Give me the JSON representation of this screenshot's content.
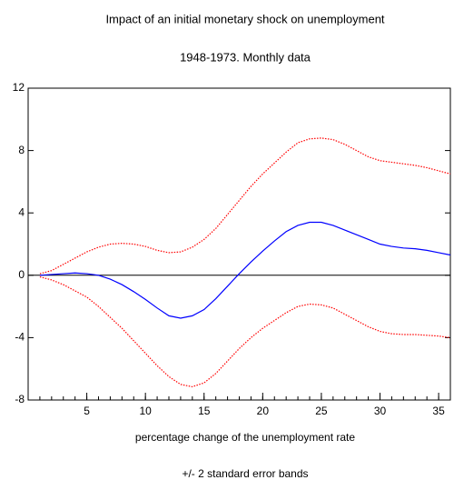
{
  "chart_data": {
    "type": "line",
    "title": "Impact of an initial monetary shock on unemployment",
    "subtitle": "1948-1973. Monthly data",
    "x_label": "percentage change of the unemployment rate",
    "note": "+/- 2 standard error bands",
    "x": [
      1,
      2,
      3,
      4,
      5,
      6,
      7,
      8,
      9,
      10,
      11,
      12,
      13,
      14,
      15,
      16,
      17,
      18,
      19,
      20,
      21,
      22,
      23,
      24,
      25,
      26,
      27,
      28,
      29,
      30,
      31,
      32,
      33,
      34,
      35,
      36
    ],
    "series": [
      {
        "color": "#0000ff",
        "dashed": false,
        "values": [
          0,
          0.05,
          0.1,
          0.15,
          0.1,
          0,
          -0.25,
          -0.6,
          -1.05,
          -1.55,
          -2.1,
          -2.6,
          -2.75,
          -2.6,
          -2.2,
          -1.5,
          -0.7,
          0.1,
          0.85,
          1.55,
          2.2,
          2.8,
          3.2,
          3.4,
          3.4,
          3.2,
          2.9,
          2.6,
          2.3,
          2.0,
          1.85,
          1.75,
          1.7,
          1.6,
          1.45,
          1.3
        ]
      },
      {
        "color": "#ff0000",
        "dashed": true,
        "values": [
          0.1,
          0.3,
          0.7,
          1.1,
          1.5,
          1.8,
          2.0,
          2.05,
          2.0,
          1.85,
          1.6,
          1.45,
          1.5,
          1.8,
          2.3,
          3.0,
          3.9,
          4.8,
          5.7,
          6.5,
          7.2,
          7.9,
          8.5,
          8.75,
          8.8,
          8.7,
          8.4,
          8.0,
          7.6,
          7.35,
          7.25,
          7.15,
          7.05,
          6.9,
          6.7,
          6.5
        ]
      },
      {
        "color": "#ff0000",
        "dashed": true,
        "values": [
          -0.1,
          -0.3,
          -0.6,
          -1.0,
          -1.4,
          -2.0,
          -2.7,
          -3.4,
          -4.2,
          -5.0,
          -5.8,
          -6.5,
          -7.0,
          -7.15,
          -6.9,
          -6.3,
          -5.5,
          -4.7,
          -4.0,
          -3.4,
          -2.9,
          -2.4,
          -2.0,
          -1.85,
          -1.9,
          -2.1,
          -2.5,
          -2.9,
          -3.3,
          -3.6,
          -3.75,
          -3.8,
          -3.8,
          -3.85,
          -3.9,
          -4.0
        ]
      }
    ],
    "xlim": [
      0,
      36
    ],
    "xticks": [
      5,
      10,
      15,
      20,
      25,
      30,
      35
    ],
    "ylim": [
      -8,
      12
    ],
    "yticks": [
      -8,
      -4,
      0,
      4,
      8,
      12
    ],
    "hline": 0
  }
}
